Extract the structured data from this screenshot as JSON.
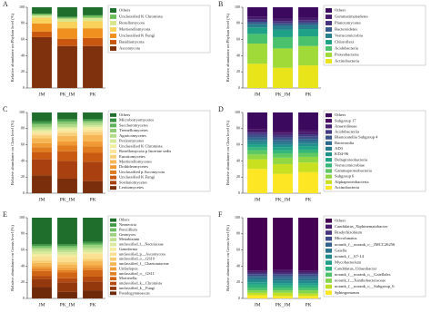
{
  "chart_data": [
    {
      "type": "stacked_bar",
      "panel": "A",
      "y_label": "Relative abundance on Phylum level (%)",
      "categories": [
        "JM",
        "PK_JM",
        "PK"
      ],
      "ylim": [
        0,
        100
      ],
      "yticks": [
        0,
        20,
        40,
        60,
        80,
        100
      ],
      "series": [
        {
          "name": "Ascomycota",
          "color": "#7f300c",
          "values": [
            63,
            52,
            52
          ]
        },
        {
          "name": "Basidiomycota",
          "color": "#c9570f",
          "values": [
            7,
            9,
            10
          ]
        },
        {
          "name": "Unclassified K Fungi",
          "color": "#f0901e",
          "values": [
            10,
            13,
            12
          ]
        },
        {
          "name": "Mortierellomycota",
          "color": "#f8d25a",
          "values": [
            7,
            8,
            9
          ]
        },
        {
          "name": "Rozellomycota",
          "color": "#d9e68e",
          "values": [
            3,
            4,
            4
          ]
        },
        {
          "name": "Unclassified K Chromista",
          "color": "#6fbe5c",
          "values": [
            2,
            2,
            3
          ]
        },
        {
          "name": "Others",
          "color": "#1f6e2c",
          "values": [
            8,
            12,
            10
          ]
        }
      ]
    },
    {
      "type": "stacked_bar",
      "panel": "B",
      "y_label": "Relative abundance on Phylum level (%)",
      "categories": [
        "JM",
        "PK_JM",
        "PK"
      ],
      "ylim": [
        0,
        100
      ],
      "yticks": [
        0,
        20,
        40,
        60,
        80,
        100
      ],
      "series": [
        {
          "name": "Actinobacteria",
          "color": "#e8e419",
          "values": [
            30,
            25,
            28
          ]
        },
        {
          "name": "Proteobacteria",
          "color": "#a0da39",
          "values": [
            25,
            24,
            24
          ]
        },
        {
          "name": "Acidobacteria",
          "color": "#4ac16d",
          "values": [
            12,
            14,
            12
          ]
        },
        {
          "name": "Chloroflexi",
          "color": "#1fa187",
          "values": [
            8,
            9,
            9
          ]
        },
        {
          "name": "Verrucomicrobia",
          "color": "#277f8e",
          "values": [
            4,
            5,
            5
          ]
        },
        {
          "name": "Bacteroidetes",
          "color": "#365c8d",
          "values": [
            3,
            3,
            3
          ]
        },
        {
          "name": "Planctomycetes",
          "color": "#46327e",
          "values": [
            3,
            3,
            3
          ]
        },
        {
          "name": "Gemmatimonadetes",
          "color": "#481a6c",
          "values": [
            3,
            3,
            3
          ]
        },
        {
          "name": "Others",
          "color": "#3b0a5f",
          "values": [
            12,
            14,
            13
          ]
        }
      ]
    },
    {
      "type": "stacked_bar",
      "panel": "C",
      "y_label": "Relative abundance on Class level (%)",
      "categories": [
        "JM",
        "PK_JM",
        "PK"
      ],
      "ylim": [
        0,
        100
      ],
      "yticks": [
        0,
        20,
        40,
        60,
        80,
        100
      ],
      "series": [
        {
          "name": "Leotiomycetes",
          "color": "#7a2e0b",
          "values": [
            22,
            18,
            15
          ]
        },
        {
          "name": "Sordariomycetes",
          "color": "#a8400f",
          "values": [
            20,
            22,
            24
          ]
        },
        {
          "name": "Unclassified K Fungi",
          "color": "#c95a12",
          "values": [
            9,
            12,
            11
          ]
        },
        {
          "name": "Unclassified p Ascomycota",
          "color": "#e07b1f",
          "values": [
            6,
            7,
            8
          ]
        },
        {
          "name": "Dothideomycetes",
          "color": "#ef9a35",
          "values": [
            5,
            5,
            6
          ]
        },
        {
          "name": "Mortierellomycetes",
          "color": "#f6b655",
          "values": [
            6,
            7,
            8
          ]
        },
        {
          "name": "Eurotiomycetes",
          "color": "#f9cf77",
          "values": [
            4,
            4,
            4
          ]
        },
        {
          "name": "Rozellomycota p Incertae sedis",
          "color": "#fbe39c",
          "values": [
            3,
            3,
            3
          ]
        },
        {
          "name": "Unclassified K Chromista",
          "color": "#f1ee9f",
          "values": [
            2,
            2,
            3
          ]
        },
        {
          "name": "Pezizomycetes",
          "color": "#d6e89a",
          "values": [
            2,
            2,
            2
          ]
        },
        {
          "name": "Agaricomycetes",
          "color": "#b5dc8a",
          "values": [
            3,
            3,
            3
          ]
        },
        {
          "name": "Tremellomycetes",
          "color": "#8ecb74",
          "values": [
            3,
            3,
            2
          ]
        },
        {
          "name": "Saccharomycetes",
          "color": "#5fb15a",
          "values": [
            2,
            2,
            1
          ]
        },
        {
          "name": "Microbotryomycetes",
          "color": "#37923f",
          "values": [
            2,
            2,
            2
          ]
        },
        {
          "name": "Others",
          "color": "#1f6e2c",
          "values": [
            11,
            8,
            8
          ]
        }
      ]
    },
    {
      "type": "stacked_bar",
      "panel": "D",
      "y_label": "Relative abundance on Class level (%)",
      "categories": [
        "JM",
        "PK_JM",
        "PK"
      ],
      "ylim": [
        0,
        100
      ],
      "yticks": [
        0,
        20,
        40,
        60,
        80,
        100
      ],
      "series": [
        {
          "name": "Actinobacteria",
          "color": "#fde725",
          "values": [
            30,
            24,
            26
          ]
        },
        {
          "name": "Alphaproteobacteria",
          "color": "#c8e020",
          "values": [
            12,
            12,
            12
          ]
        },
        {
          "name": "Subgroup 6",
          "color": "#90d743",
          "values": [
            6,
            8,
            7
          ]
        },
        {
          "name": "Gammaproteobacteria",
          "color": "#5ec962",
          "values": [
            5,
            5,
            5
          ]
        },
        {
          "name": "Verrucomicrobiae",
          "color": "#35b779",
          "values": [
            4,
            4,
            4
          ]
        },
        {
          "name": "Deltaproteobacteria",
          "color": "#20a486",
          "values": [
            3,
            4,
            4
          ]
        },
        {
          "name": "KD4-96",
          "color": "#21918c",
          "values": [
            3,
            3,
            3
          ]
        },
        {
          "name": "AD3",
          "color": "#287c8e",
          "values": [
            3,
            3,
            3
          ]
        },
        {
          "name": "Bacteroidia",
          "color": "#31688e",
          "values": [
            3,
            3,
            3
          ]
        },
        {
          "name": "Blastocatellia Subgroup 4",
          "color": "#3b528b",
          "values": [
            3,
            3,
            3
          ]
        },
        {
          "name": "Acidobacteriia",
          "color": "#443983",
          "values": [
            3,
            3,
            3
          ]
        },
        {
          "name": "Anaerolineae",
          "color": "#481f70",
          "values": [
            2,
            3,
            3
          ]
        },
        {
          "name": "Subgroup 17",
          "color": "#470d60",
          "values": [
            2,
            2,
            2
          ]
        },
        {
          "name": "Others",
          "color": "#3b0a5f",
          "values": [
            21,
            23,
            22
          ]
        }
      ]
    },
    {
      "type": "stacked_bar",
      "panel": "E",
      "y_label": "Relative abundance on Genus level (%)",
      "categories": [
        "JM",
        "PK_JM",
        "PK"
      ],
      "ylim": [
        0,
        100
      ],
      "yticks": [
        0,
        20,
        40,
        60,
        80,
        100
      ],
      "series": [
        {
          "name": "Pseudogymnoascus",
          "color": "#6e280a",
          "values": [
            14,
            8,
            10
          ]
        },
        {
          "name": "unclassified_k__Fungi",
          "color": "#93370d",
          "values": [
            10,
            12,
            11
          ]
        },
        {
          "name": "unclassified_k__Chromista",
          "color": "#b54a10",
          "values": [
            4,
            5,
            6
          ]
        },
        {
          "name": "Mortierella",
          "color": "#d06515",
          "values": [
            6,
            7,
            8
          ]
        },
        {
          "name": "unclassified_o__GS11",
          "color": "#e38224",
          "values": [
            3,
            3,
            3
          ]
        },
        {
          "name": "Umbelopsis",
          "color": "#ef9d38",
          "values": [
            3,
            3,
            3
          ]
        },
        {
          "name": "unclassified_f__Chaetomiaceae",
          "color": "#f5b552",
          "values": [
            4,
            4,
            5
          ]
        },
        {
          "name": "unclassified_o__GS10",
          "color": "#f8cb6e",
          "values": [
            3,
            3,
            3
          ]
        },
        {
          "name": "unclassified_p__Ascomycota",
          "color": "#fbdf90",
          "values": [
            5,
            6,
            6
          ]
        },
        {
          "name": "Ganoderma",
          "color": "#f3ec9e",
          "values": [
            3,
            3,
            2
          ]
        },
        {
          "name": "unclassified_f__Nectriaceae",
          "color": "#dbe99b",
          "values": [
            3,
            3,
            3
          ]
        },
        {
          "name": "Metarhizium",
          "color": "#bfe08f",
          "values": [
            3,
            3,
            3
          ]
        },
        {
          "name": "Geomyces",
          "color": "#9bd27c",
          "values": [
            2,
            3,
            3
          ]
        },
        {
          "name": "Penicillium",
          "color": "#6dbb62",
          "values": [
            2,
            2,
            2
          ]
        },
        {
          "name": "Neonectria",
          "color": "#3f9a45",
          "values": [
            2,
            2,
            2
          ]
        },
        {
          "name": "Others",
          "color": "#1f6e2c",
          "values": [
            33,
            33,
            30
          ]
        }
      ]
    },
    {
      "type": "stacked_bar",
      "panel": "F",
      "y_label": "Relative abundance on Genus level (%)",
      "categories": [
        "JM",
        "PK_JM",
        "PK"
      ],
      "ylim": [
        0,
        100
      ],
      "yticks": [
        0,
        20,
        40,
        60,
        80,
        100
      ],
      "series": [
        {
          "name": "Sphingomonas",
          "color": "#fde725",
          "values": [
            4,
            3,
            3
          ]
        },
        {
          "name": "norank_f__norank_o__Subgroup_6",
          "color": "#c0df25",
          "values": [
            3,
            4,
            3
          ]
        },
        {
          "name": "norank_f__Xanthobacteraceae",
          "color": "#84d44b",
          "values": [
            3,
            3,
            4
          ]
        },
        {
          "name": "norank_f__norank_o__Gaiellales",
          "color": "#4fc36a",
          "values": [
            3,
            3,
            3
          ]
        },
        {
          "name": "Candidatus_Udaeobacter",
          "color": "#2cb17e",
          "values": [
            4,
            3,
            3
          ]
        },
        {
          "name": "Mycobacterium",
          "color": "#1f9e89",
          "values": [
            3,
            3,
            3
          ]
        },
        {
          "name": "norank_f__67-14",
          "color": "#228a8d",
          "values": [
            3,
            3,
            3
          ]
        },
        {
          "name": "Gaiella",
          "color": "#2a768e",
          "values": [
            3,
            3,
            3
          ]
        },
        {
          "name": "norank_f__norank_o__IMCC26256",
          "color": "#33628d",
          "values": [
            2,
            3,
            3
          ]
        },
        {
          "name": "Microlunatus",
          "color": "#3e4c8a",
          "values": [
            2,
            2,
            2
          ]
        },
        {
          "name": "Bradyrhizobium",
          "color": "#46337e",
          "values": [
            2,
            2,
            2
          ]
        },
        {
          "name": "Candidatus_Xiphinematobacter",
          "color": "#481b6d",
          "values": [
            2,
            3,
            2
          ]
        },
        {
          "name": "Others",
          "color": "#440154",
          "values": [
            66,
            65,
            66
          ]
        }
      ]
    }
  ]
}
